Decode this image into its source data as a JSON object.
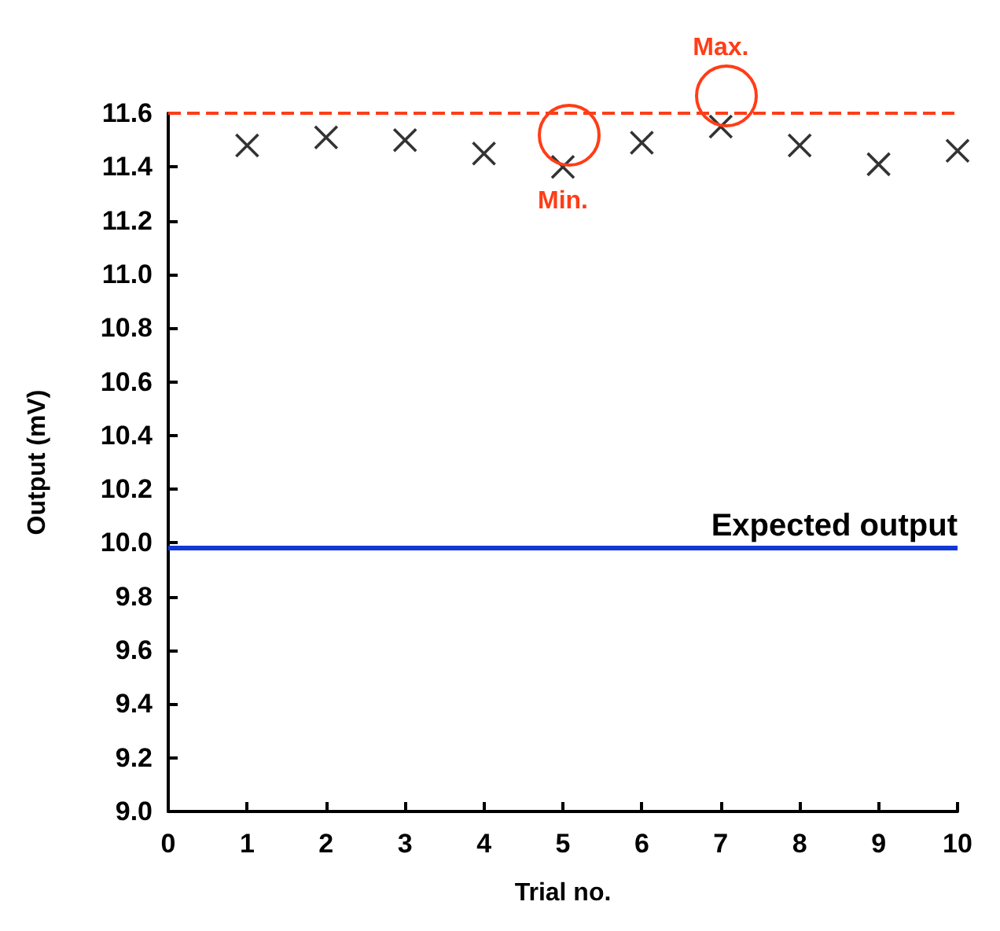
{
  "chart_data": {
    "type": "scatter",
    "xlabel": "Trial no.",
    "ylabel": "Output (mV)",
    "x": [
      1,
      2,
      3,
      4,
      5,
      6,
      7,
      8,
      9,
      10
    ],
    "series": [
      {
        "color": "#000000",
        "values": [
          11.48,
          11.51,
          11.5,
          11.45,
          11.4,
          11.49,
          11.55,
          11.48,
          11.41,
          11.46
        ]
      }
    ],
    "xlim": [
      0,
      10
    ],
    "xticks": [
      0,
      1,
      2,
      3,
      4,
      5,
      6,
      7,
      8,
      9,
      10
    ],
    "ylim": [
      9,
      11.6
    ],
    "yticks": [
      {
        "value": 9,
        "label": "9.0"
      },
      9.2,
      9.4,
      9.6,
      9.8,
      {
        "value": 10,
        "label": "10.0"
      },
      10.2,
      10.4,
      10.6,
      10.8,
      {
        "value": 11,
        "label": "11.0"
      },
      11.2,
      11.4,
      11.6
    ],
    "ref_lines": [
      {
        "axis": "y",
        "value": 9.98,
        "label": "Expected output",
        "color": "#1238d6",
        "line_style": "solid"
      },
      {
        "axis": "y",
        "value": 11.6,
        "color": "#ff3d17",
        "line_style": "dashed"
      }
    ],
    "annotations": [
      {
        "text": "Max.",
        "x": 7,
        "y": 11.55
      },
      {
        "text": "Min.",
        "x": 5,
        "y": 11.4
      }
    ],
    "marker": "cross"
  }
}
